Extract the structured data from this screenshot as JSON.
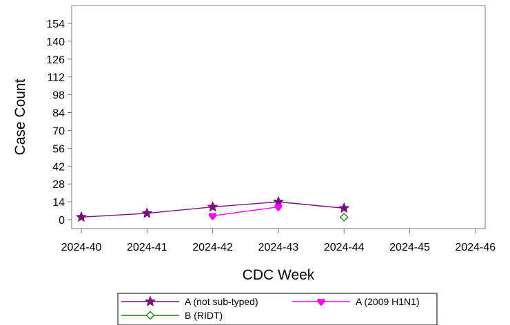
{
  "chart_data": {
    "type": "line",
    "title": "",
    "xlabel": "CDC Week",
    "ylabel": "Case Count",
    "categories": [
      "2024-40",
      "2024-41",
      "2024-42",
      "2024-43",
      "2024-44",
      "2024-45",
      "2024-46"
    ],
    "yticks": [
      0,
      14,
      28,
      42,
      56,
      70,
      84,
      98,
      112,
      126,
      140,
      154
    ],
    "ylim": [
      -7,
      168
    ],
    "grid": false,
    "legend": "bottom",
    "series": [
      {
        "name": "A (not sub-typed)",
        "color": "#7b0f7b",
        "marker": "star",
        "values": [
          2,
          5,
          10,
          14,
          9,
          null,
          null
        ]
      },
      {
        "name": "A (2009 H1N1)",
        "color": "#ff00ff",
        "marker": "heart",
        "values": [
          null,
          null,
          3,
          10,
          null,
          null,
          null
        ]
      },
      {
        "name": "B (RIDT)",
        "color": "#1a7a1a",
        "marker": "diamond-open",
        "values": [
          null,
          null,
          null,
          null,
          2,
          null,
          null
        ]
      }
    ]
  }
}
